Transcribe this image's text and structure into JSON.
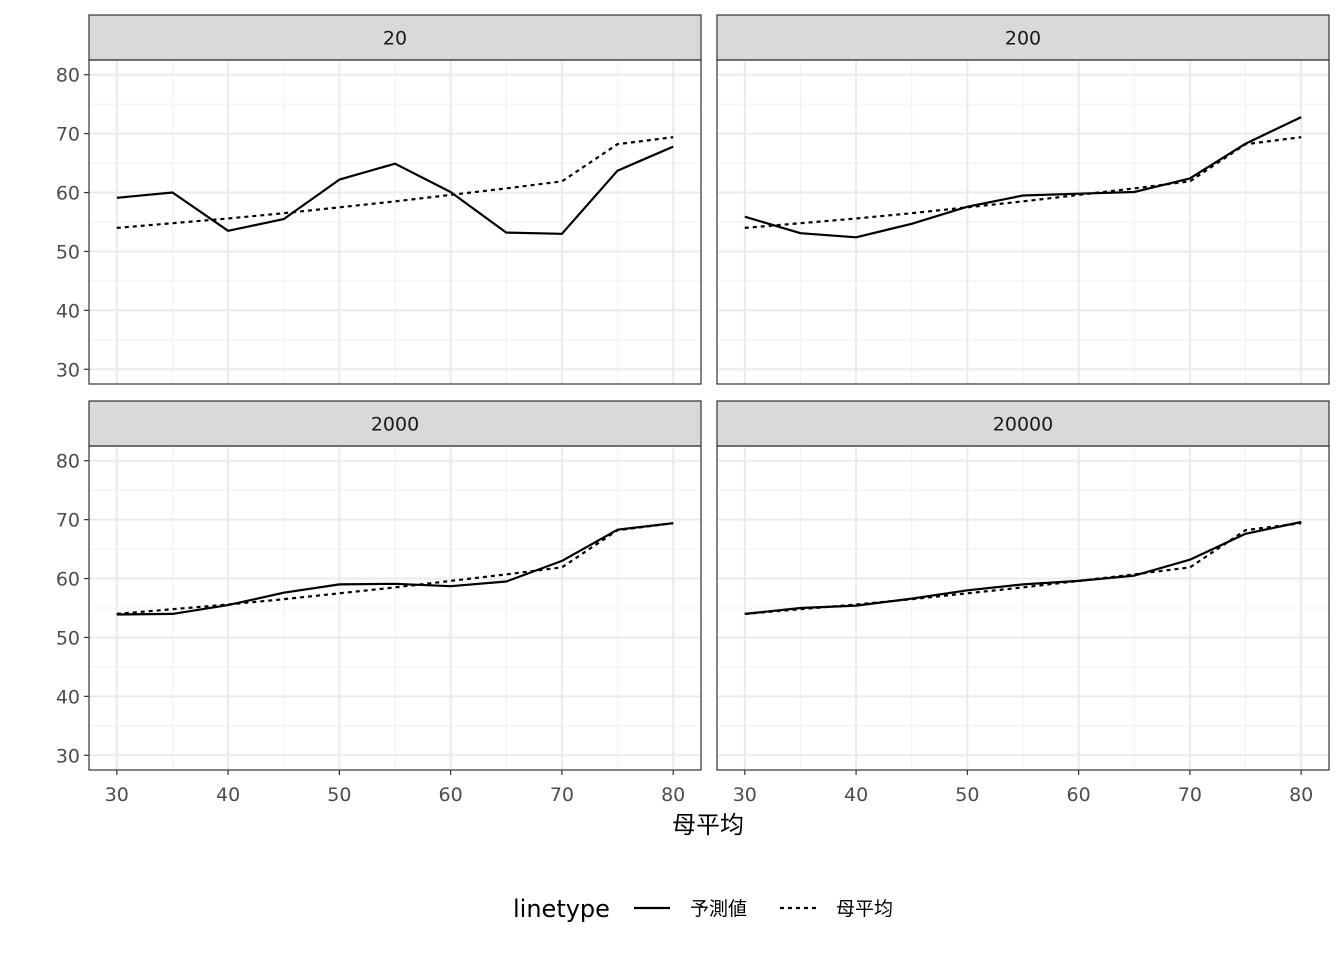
{
  "chart_data": {
    "type": "line",
    "facet_panels": [
      "20",
      "200",
      "2000",
      "20000"
    ],
    "x_ticks": [
      30,
      40,
      50,
      60,
      70,
      80
    ],
    "y_ticks": [
      30,
      40,
      50,
      60,
      70,
      80
    ],
    "xlim": [
      27.5,
      82.5
    ],
    "ylim": [
      27.5,
      82.5
    ],
    "xlabel": "母平均",
    "ylabel": "",
    "grid": true,
    "legend": {
      "title": "linetype",
      "position": "bottom",
      "entries": [
        {
          "label": "予測値",
          "linetype": "solid"
        },
        {
          "label": "母平均",
          "linetype": "dashed"
        }
      ]
    },
    "x": [
      30,
      35,
      40,
      45,
      50,
      55,
      60,
      65,
      70,
      75,
      80
    ],
    "population_mean": [
      54,
      54.8,
      55.6,
      56.5,
      57.5,
      58.5,
      59.6,
      60.7,
      61.9,
      68.2,
      69.4
    ],
    "panels": [
      {
        "strip": "20",
        "series": [
          {
            "name": "予測値",
            "linetype": "solid",
            "values": [
              59.1,
              60,
              53.5,
              55.5,
              62.2,
              64.9,
              60.1,
              53.2,
              53,
              63.7,
              67.8
            ]
          },
          {
            "name": "母平均",
            "linetype": "dashed",
            "values": [
              54,
              54.8,
              55.6,
              56.5,
              57.5,
              58.5,
              59.6,
              60.7,
              61.9,
              68.2,
              69.4
            ]
          }
        ]
      },
      {
        "strip": "200",
        "series": [
          {
            "name": "予測値",
            "linetype": "solid",
            "values": [
              55.9,
              53.1,
              52.4,
              54.7,
              57.6,
              59.5,
              59.8,
              60.1,
              62.4,
              68.3,
              72.8
            ]
          },
          {
            "name": "母平均",
            "linetype": "dashed",
            "values": [
              54,
              54.8,
              55.6,
              56.5,
              57.5,
              58.5,
              59.6,
              60.7,
              61.9,
              68.2,
              69.4
            ]
          }
        ]
      },
      {
        "strip": "2000",
        "series": [
          {
            "name": "予測値",
            "linetype": "solid",
            "values": [
              53.9,
              54,
              55.5,
              57.6,
              59,
              59.1,
              58.7,
              59.5,
              63,
              68.3,
              69.4
            ]
          },
          {
            "name": "母平均",
            "linetype": "dashed",
            "values": [
              54,
              54.8,
              55.6,
              56.5,
              57.5,
              58.5,
              59.6,
              60.7,
              61.9,
              68.2,
              69.4
            ]
          }
        ]
      },
      {
        "strip": "20000",
        "series": [
          {
            "name": "予測値",
            "linetype": "solid",
            "values": [
              54,
              55,
              55.4,
              56.6,
              58,
              59,
              59.6,
              60.5,
              63.2,
              67.6,
              69.6
            ]
          },
          {
            "name": "母平均",
            "linetype": "dashed",
            "values": [
              54,
              54.8,
              55.6,
              56.5,
              57.5,
              58.5,
              59.6,
              60.7,
              61.9,
              68.2,
              69.4
            ]
          }
        ]
      }
    ]
  },
  "colors": {
    "strip_fill": "#d9d9d9",
    "strip_border": "#333333",
    "panel_border": "#333333",
    "grid_major": "#ebebeb",
    "grid_minor": "#f3f3f3",
    "line": "#000000",
    "tick_text": "#4d4d4d"
  }
}
